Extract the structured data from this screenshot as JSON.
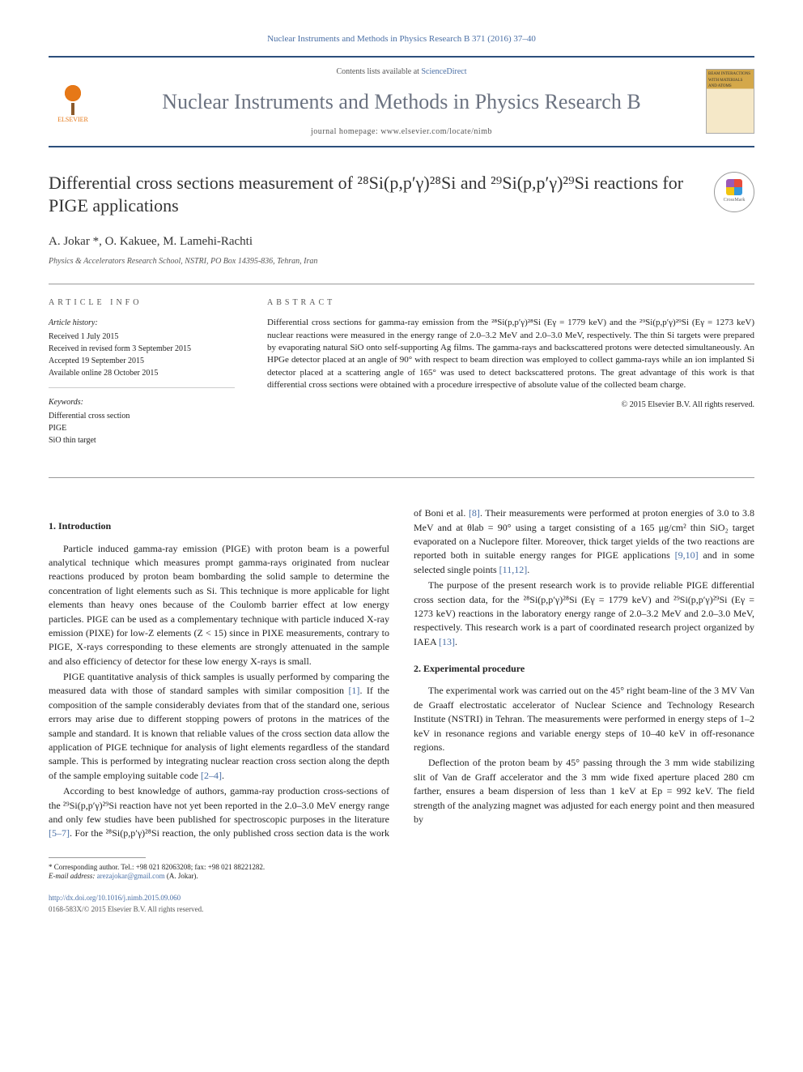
{
  "journal_ref": "Nuclear Instruments and Methods in Physics Research B 371 (2016) 37–40",
  "header": {
    "contents_prefix": "Contents lists available at ",
    "contents_link": "ScienceDirect",
    "journal_title": "Nuclear Instruments and Methods in Physics Research B",
    "homepage_label": "journal homepage: www.elsevier.com/locate/nimb",
    "publisher": "ELSEVIER",
    "cover_text": "BEAM INTERACTIONS WITH MATERIALS AND ATOMS"
  },
  "crossmark_label": "CrossMark",
  "title": "Differential cross sections measurement of ²⁸Si(p,p′γ)²⁸Si and ²⁹Si(p,p′γ)²⁹Si reactions for PIGE applications",
  "authors": "A. Jokar *, O. Kakuee, M. Lamehi-Rachti",
  "affiliation": "Physics & Accelerators Research School, NSTRI, PO Box 14395-836, Tehran, Iran",
  "info": {
    "heading": "ARTICLE INFO",
    "history_label": "Article history:",
    "history": [
      "Received 1 July 2015",
      "Received in revised form 3 September 2015",
      "Accepted 19 September 2015",
      "Available online 28 October 2015"
    ],
    "keywords_label": "Keywords:",
    "keywords": [
      "Differential cross section",
      "PIGE",
      "SiO thin target"
    ]
  },
  "abstract": {
    "heading": "ABSTRACT",
    "text": "Differential cross sections for gamma-ray emission from the ²⁸Si(p,p′γ)²⁸Si (Eγ = 1779 keV) and the ²⁹Si(p,p′γ)²⁹Si (Eγ = 1273 keV) nuclear reactions were measured in the energy range of 2.0–3.2 MeV and 2.0–3.0 MeV, respectively. The thin Si targets were prepared by evaporating natural SiO onto self-supporting Ag films. The gamma-rays and backscattered protons were detected simultaneously. An HPGe detector placed at an angle of 90° with respect to beam direction was employed to collect gamma-rays while an ion implanted Si detector placed at a scattering angle of 165° was used to detect backscattered protons. The great advantage of this work is that differential cross sections were obtained with a procedure irrespective of absolute value of the collected beam charge.",
    "copyright": "© 2015 Elsevier B.V. All rights reserved."
  },
  "sections": {
    "s1_heading": "1. Introduction",
    "s1_p1": "Particle induced gamma-ray emission (PIGE) with proton beam is a powerful analytical technique which measures prompt gamma-rays originated from nuclear reactions produced by proton beam bombarding the solid sample to determine the concentration of light elements such as Si. This technique is more applicable for light elements than heavy ones because of the Coulomb barrier effect at low energy particles. PIGE can be used as a complementary technique with particle induced X-ray emission (PIXE) for low-Z elements (Z < 15) since in PIXE measurements, contrary to PIGE, X-rays corresponding to these elements are strongly attenuated in the sample and also efficiency of detector for these low energy X-rays is small.",
    "s1_p2a": "PIGE quantitative analysis of thick samples is usually performed by comparing the measured data with those of standard samples with similar composition ",
    "s1_p2_ref1": "[1]",
    "s1_p2b": ". If the composition of the sample considerably deviates from that of the standard one, serious errors may arise due to different stopping powers of protons in the matrices of the sample and standard. It is known that reliable values of the cross section data allow the application of PIGE technique for analysis of light elements regardless of the standard sample. This is performed by integrating nuclear reaction cross section along the depth of the sample employing suitable code ",
    "s1_p2_ref2": "[2–4]",
    "s1_p2c": ".",
    "s1_p3": "According to best knowledge of authors, gamma-ray production cross-sections of the ²⁹Si(p,p′γ)²⁹Si reaction have not yet been reported in the 2.0–3.0 MeV energy range and only few studies have been published for spectroscopic purposes in the literature ",
    "s1_p3_ref1": "[5–7]",
    "s1_p3b": ". For the ²⁸Si(p,p′γ)²⁸Si reaction, the only published cross section data is the work of Boni et al. ",
    "s1_p3_ref2": "[8]",
    "s1_p3c": ". Their measurements were performed at proton energies of 3.0 to 3.8 MeV and at θlab = 90° using a target consisting of a 165 μg/cm² thin SiO₂ target evaporated on a Nuclepore filter. Moreover, thick target yields of the two reactions are reported both in suitable energy ranges for PIGE applications ",
    "s1_p3_ref3": "[9,10]",
    "s1_p3d": " and in some selected single points ",
    "s1_p3_ref4": "[11,12]",
    "s1_p3e": ".",
    "s1_p4": "The purpose of the present research work is to provide reliable PIGE differential cross section data, for the ²⁸Si(p,p′γ)²⁸Si (Eγ = 1779 keV) and ²⁹Si(p,p′γ)²⁹Si (Eγ = 1273 keV) reactions in the laboratory energy range of 2.0–3.2 MeV and 2.0–3.0 MeV, respectively. This research work is a part of coordinated research project organized by IAEA ",
    "s1_p4_ref1": "[13]",
    "s1_p4b": ".",
    "s2_heading": "2. Experimental procedure",
    "s2_p1": "The experimental work was carried out on the 45° right beam-line of the 3 MV Van de Graaff electrostatic accelerator of Nuclear Science and Technology Research Institute (NSTRI) in Tehran. The measurements were performed in energy steps of 1–2 keV in resonance regions and variable energy steps of 10–40 keV in off-resonance regions.",
    "s2_p2": "Deflection of the proton beam by 45° passing through the 3 mm wide stabilizing slit of Van de Graff accelerator and the 3 mm wide fixed aperture placed 280 cm farther, ensures a beam dispersion of less than 1 keV at Ep = 992 keV. The field strength of the analyzing magnet was adjusted for each energy point and then measured by"
  },
  "footer": {
    "corresponding_label": "* Corresponding author. Tel.: +98 021 82063208; fax: +98 021 88221282.",
    "email_label": "E-mail address: ",
    "email": "arezajokar@gmail.com",
    "email_suffix": " (A. Jokar).",
    "doi": "http://dx.doi.org/10.1016/j.nimb.2015.09.060",
    "issn": "0168-583X/© 2015 Elsevier B.V. All rights reserved."
  }
}
